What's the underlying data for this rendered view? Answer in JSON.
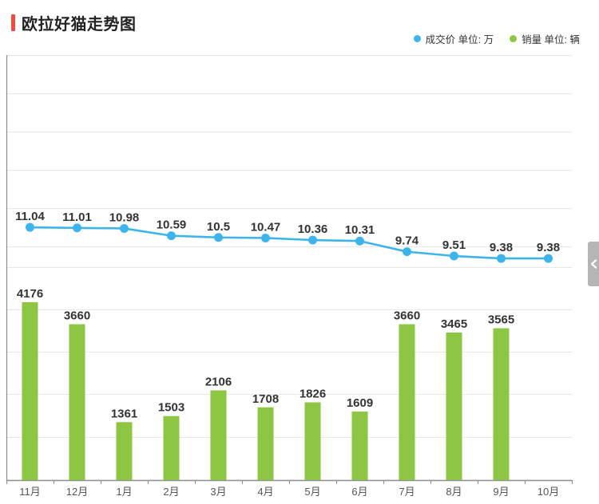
{
  "header": {
    "title": "欧拉好猫走势图",
    "accent_color": "#f04a41"
  },
  "legend": {
    "items": [
      {
        "label": "成交价 单位: 万",
        "color": "#3db5ec"
      },
      {
        "label": "销量 单位: 辆",
        "color": "#8dc643"
      }
    ]
  },
  "side_toggle": {
    "chevron_color": "#ffffff",
    "background": "#b5b5b5"
  },
  "chart_data": {
    "type": "line+bar",
    "title": "欧拉好猫走势图",
    "categories": [
      "11月",
      "12月",
      "1月",
      "2月",
      "3月",
      "4月",
      "5月",
      "6月",
      "7月",
      "8月",
      "9月",
      "10月"
    ],
    "series": [
      {
        "name": "成交价",
        "type": "line",
        "unit": "万",
        "color": "#3db5ec",
        "values": [
          11.04,
          11.01,
          10.98,
          10.59,
          10.5,
          10.47,
          10.36,
          10.31,
          9.74,
          9.51,
          9.38,
          9.38
        ]
      },
      {
        "name": "销量",
        "type": "bar",
        "unit": "辆",
        "color": "#8dc643",
        "values": [
          4176,
          3660,
          1361,
          1503,
          2106,
          1708,
          1826,
          1609,
          3660,
          3465,
          3565,
          null
        ]
      }
    ],
    "layout_hints": {
      "legend_position": "top-right",
      "grid": "horizontal gridlines on, data labels on",
      "bar_axis_range": [
        0,
        5000
      ],
      "line_axis_note": "price axis unlabeled, line plotted in upper band",
      "label_color": "#333333",
      "gridline_color": "#e8e8e8",
      "axis_color": "#8c8c8c",
      "x_label_color": "#555555"
    }
  }
}
